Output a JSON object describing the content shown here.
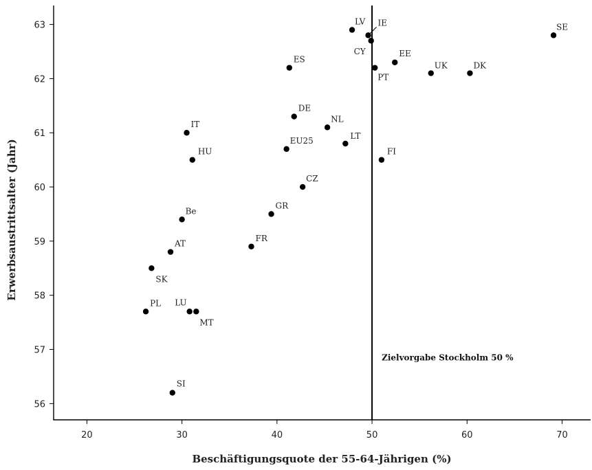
{
  "chart_data": {
    "type": "scatter",
    "xlabel": "Beschäftigungsquote der 55-64-Jährigen (%)",
    "ylabel": "Erwerbsaustrittsalter (Jahr)",
    "xlim": [
      16.5,
      73
    ],
    "ylim": [
      55.7,
      63.35
    ],
    "xticks": [
      20,
      30,
      40,
      50,
      60,
      70
    ],
    "yticks": [
      56,
      57,
      58,
      59,
      60,
      61,
      62,
      63
    ],
    "grid": false,
    "reference_line": {
      "x": 50,
      "label": "Zielvorgabe Stockholm 50 %"
    },
    "points": [
      {
        "label": "LV",
        "x": 47.9,
        "y": 62.9
      },
      {
        "label": "IE",
        "x": 49.6,
        "y": 62.8
      },
      {
        "label": "CY",
        "x": 49.9,
        "y": 62.7
      },
      {
        "label": "SE",
        "x": 69.1,
        "y": 62.8
      },
      {
        "label": "ES",
        "x": 41.3,
        "y": 62.2
      },
      {
        "label": "EE",
        "x": 52.4,
        "y": 62.3
      },
      {
        "label": "PT",
        "x": 50.3,
        "y": 62.2
      },
      {
        "label": "UK",
        "x": 56.2,
        "y": 62.1
      },
      {
        "label": "DK",
        "x": 60.3,
        "y": 62.1
      },
      {
        "label": "DE",
        "x": 41.8,
        "y": 61.3
      },
      {
        "label": "NL",
        "x": 45.3,
        "y": 61.1
      },
      {
        "label": "IT",
        "x": 30.5,
        "y": 61.0
      },
      {
        "label": "LT",
        "x": 47.2,
        "y": 60.8
      },
      {
        "label": "EU25",
        "x": 41.0,
        "y": 60.7
      },
      {
        "label": "HU",
        "x": 31.1,
        "y": 60.5
      },
      {
        "label": "FI",
        "x": 51.0,
        "y": 60.5
      },
      {
        "label": "CZ",
        "x": 42.7,
        "y": 60.0
      },
      {
        "label": "GR",
        "x": 39.4,
        "y": 59.5
      },
      {
        "label": "Be",
        "x": 30.0,
        "y": 59.4
      },
      {
        "label": "FR",
        "x": 37.3,
        "y": 58.9
      },
      {
        "label": "AT",
        "x": 28.8,
        "y": 58.8
      },
      {
        "label": "SK",
        "x": 26.8,
        "y": 58.5
      },
      {
        "label": "PL",
        "x": 26.2,
        "y": 57.7
      },
      {
        "label": "LU",
        "x": 30.8,
        "y": 57.7
      },
      {
        "label": "MT",
        "x": 31.5,
        "y": 57.7
      },
      {
        "label": "SI",
        "x": 29.0,
        "y": 56.2
      }
    ]
  }
}
